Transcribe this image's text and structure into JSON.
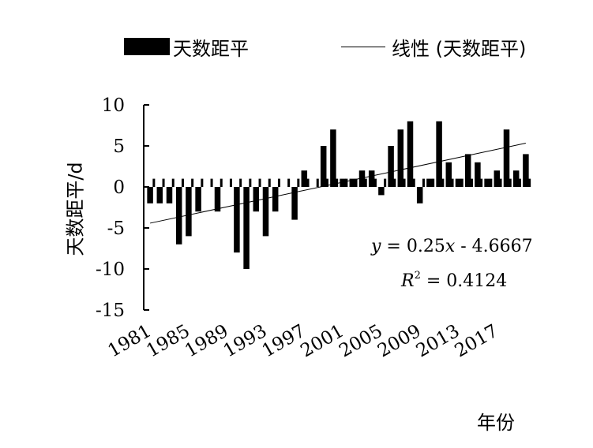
{
  "legend": {
    "bar_label": "天数距平",
    "line_label": "线性 (天数距平)"
  },
  "ylabel": "天数距平/d",
  "xlabel": "年份",
  "equation": {
    "y_symbol": "y",
    "rhs_prefix": " = 0.25",
    "x_symbol": "x",
    "rhs_suffix": " - 4.6667",
    "r_symbol": "R",
    "r_power": "2",
    "r_value": " = 0.4124"
  },
  "chart_data": {
    "type": "bar",
    "years": [
      1981,
      1982,
      1983,
      1984,
      1985,
      1986,
      1987,
      1988,
      1989,
      1990,
      1991,
      1992,
      1993,
      1994,
      1995,
      1996,
      1997,
      1998,
      1999,
      2000,
      2001,
      2002,
      2003,
      2004,
      2005,
      2006,
      2007,
      2008,
      2009,
      2010,
      2011,
      2012,
      2013,
      2014,
      2015,
      2016,
      2017,
      2018,
      2019,
      2020
    ],
    "values": [
      -2,
      -2,
      -2,
      -7,
      -6,
      -3,
      0,
      -3,
      0,
      -8,
      -10,
      -3,
      -6,
      -3,
      0,
      -4,
      2,
      0,
      5,
      7,
      1,
      1,
      2,
      2,
      -1,
      5,
      7,
      8,
      -2,
      1,
      8,
      3,
      1,
      4,
      3,
      1,
      2,
      7,
      2,
      4
    ],
    "baseline_tick_height": 1,
    "xticks": [
      "1981",
      "1985",
      "1989",
      "1993",
      "1997",
      "2001",
      "2005",
      "2009",
      "2013",
      "2017"
    ],
    "yticks": [
      "10",
      "5",
      "0",
      "-5",
      "-10",
      "-15"
    ],
    "ylim": [
      -15,
      10
    ],
    "trend": {
      "slope": 0.25,
      "intercept": -4.6667,
      "r2": 0.4124
    },
    "colors": {
      "bar": "#000000",
      "axis": "#000000",
      "trend": "#000000"
    }
  }
}
